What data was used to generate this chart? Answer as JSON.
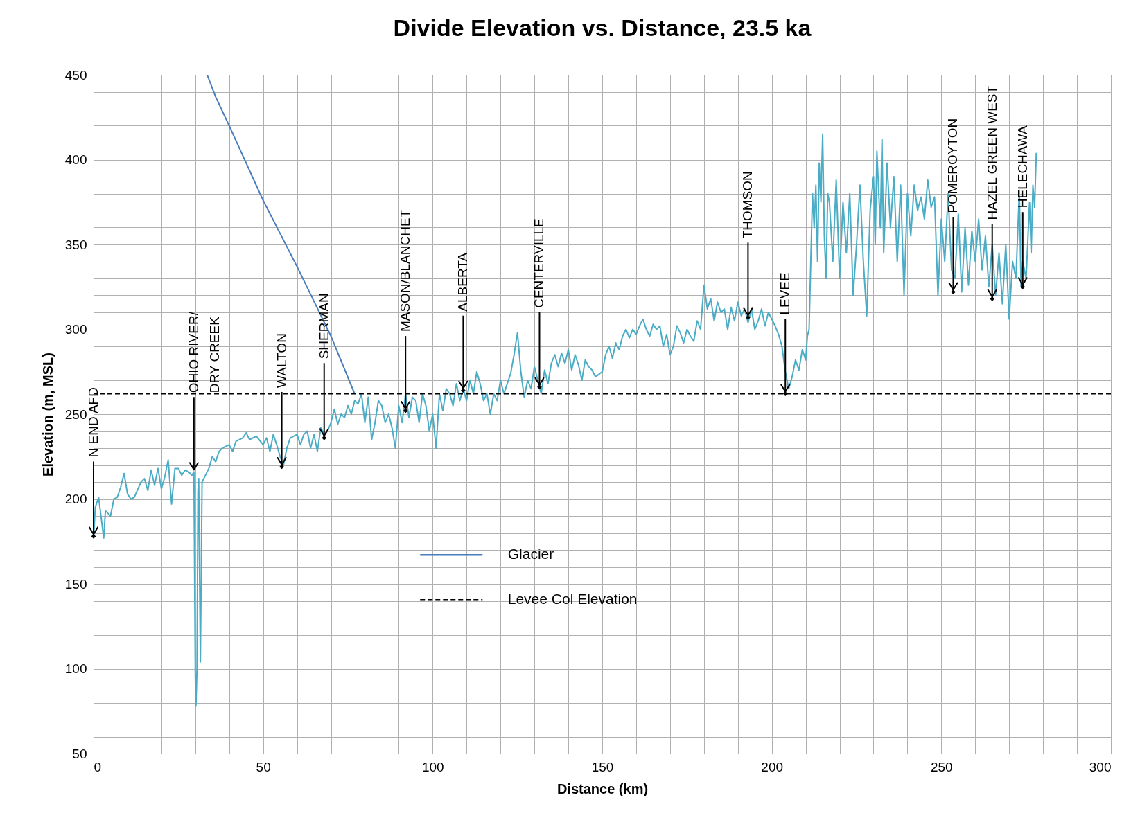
{
  "chart_data": {
    "type": "line",
    "title": "Divide Elevation vs. Distance, 23.5 ka",
    "xlabel": "Distance (km)",
    "ylabel": "Elevation (m, MSL)",
    "xlim": [
      0,
      300
    ],
    "ylim": [
      50,
      450
    ],
    "xticks": [
      0,
      {
        "value": 10,
        "label": null
      },
      {
        "value": 20,
        "label": null
      },
      {
        "value": 30,
        "label": null
      },
      {
        "value": 40,
        "label": null
      },
      50,
      {
        "value": 60,
        "label": null
      },
      {
        "value": 70,
        "label": null
      },
      {
        "value": 80,
        "label": null
      },
      {
        "value": 90,
        "label": null
      },
      100,
      {
        "value": 110,
        "label": null
      },
      {
        "value": 120,
        "label": null
      },
      {
        "value": 130,
        "label": null
      },
      {
        "value": 140,
        "label": null
      },
      150,
      {
        "value": 160,
        "label": null
      },
      {
        "value": 170,
        "label": null
      },
      {
        "value": 180,
        "label": null
      },
      {
        "value": 190,
        "label": null
      },
      200,
      {
        "value": 210,
        "label": null
      },
      {
        "value": 220,
        "label": null
      },
      {
        "value": 230,
        "label": null
      },
      {
        "value": 240,
        "label": null
      },
      250,
      {
        "value": 260,
        "label": null
      },
      {
        "value": 270,
        "label": null
      },
      {
        "value": 280,
        "label": null
      },
      {
        "value": 290,
        "label": null
      },
      300
    ],
    "yticks": [
      50,
      {
        "value": 60,
        "label": null
      },
      {
        "value": 70,
        "label": null
      },
      {
        "value": 80,
        "label": null
      },
      {
        "value": 90,
        "label": null
      },
      100,
      {
        "value": 110,
        "label": null
      },
      {
        "value": 120,
        "label": null
      },
      {
        "value": 130,
        "label": null
      },
      {
        "value": 140,
        "label": null
      },
      150,
      {
        "value": 160,
        "label": null
      },
      {
        "value": 170,
        "label": null
      },
      {
        "value": 180,
        "label": null
      },
      {
        "value": 190,
        "label": null
      },
      200,
      {
        "value": 210,
        "label": null
      },
      {
        "value": 220,
        "label": null
      },
      {
        "value": 230,
        "label": null
      },
      {
        "value": 240,
        "label": null
      },
      250,
      {
        "value": 260,
        "label": null
      },
      {
        "value": 270,
        "label": null
      },
      {
        "value": 280,
        "label": null
      },
      {
        "value": 290,
        "label": null
      },
      300,
      {
        "value": 310,
        "label": null
      },
      {
        "value": 320,
        "label": null
      },
      {
        "value": 330,
        "label": null
      },
      {
        "value": 340,
        "label": null
      },
      350,
      {
        "value": 360,
        "label": null
      },
      {
        "value": 370,
        "label": null
      },
      {
        "value": 380,
        "label": null
      },
      {
        "value": 390,
        "label": null
      },
      400,
      {
        "value": 410,
        "label": null
      },
      {
        "value": 420,
        "label": null
      },
      {
        "value": 430,
        "label": null
      },
      {
        "value": 440,
        "label": null
      },
      450
    ],
    "grid": true,
    "legend": "bottom",
    "series": [
      {
        "color": "#4bacc6",
        "x": [
          0,
          0.5,
          1.5,
          2.5,
          3,
          3.5,
          5,
          6,
          7,
          8,
          9,
          10,
          11,
          12,
          14,
          15,
          16,
          17,
          18,
          19,
          20,
          21,
          22,
          23,
          24,
          25,
          26,
          27,
          28,
          29,
          29.6,
          30,
          30.2,
          30.5,
          30.8,
          31,
          31.5,
          32,
          32.5,
          34,
          35,
          36,
          37,
          38,
          40,
          41,
          42,
          44,
          45,
          46,
          48,
          50,
          51,
          52,
          53,
          54,
          55,
          56,
          57,
          58,
          60,
          61,
          62,
          63,
          64,
          65,
          66,
          67,
          68,
          69,
          70,
          71,
          72,
          73,
          74,
          75,
          76,
          77,
          78,
          79,
          80,
          81,
          82,
          83,
          84,
          85,
          86,
          87,
          88,
          89,
          90,
          91,
          92,
          93,
          94,
          95,
          96,
          97,
          98,
          99,
          100,
          101,
          102,
          103,
          104,
          105,
          106,
          107,
          108,
          109,
          110,
          111,
          112,
          113,
          114,
          115,
          116,
          117,
          118,
          119,
          120,
          121,
          122,
          123,
          124,
          125,
          126,
          127,
          128,
          129,
          130,
          131,
          132,
          133,
          134,
          135,
          136,
          137,
          138,
          139,
          140,
          141,
          142,
          143,
          144,
          145,
          146,
          147,
          148,
          150,
          151,
          152,
          153,
          154,
          155,
          156,
          157,
          158,
          159,
          160,
          161,
          162,
          163,
          164,
          165,
          166,
          167,
          168,
          169,
          170,
          171,
          172,
          173,
          174,
          175,
          176,
          177,
          178,
          179,
          180,
          181,
          182,
          183,
          184,
          185,
          186,
          187,
          188,
          189,
          190,
          191,
          192,
          193,
          194,
          195,
          196,
          197,
          198,
          199,
          200,
          201,
          202,
          203,
          204,
          205,
          206,
          207,
          208,
          209,
          210,
          210.5,
          211,
          212,
          212.5,
          213,
          213.5,
          214,
          214.5,
          215,
          215.5,
          216,
          216.5,
          217,
          218,
          219,
          220,
          221,
          222,
          223,
          224,
          225,
          226,
          227,
          228,
          229,
          230,
          230.5,
          231,
          232,
          232.5,
          233,
          234,
          235,
          236,
          237,
          238,
          239,
          240,
          241,
          242,
          243,
          244,
          245,
          246,
          247,
          248,
          249,
          250,
          251,
          252,
          253,
          254,
          255,
          256,
          257,
          258,
          259,
          260,
          261,
          262,
          263,
          264,
          265,
          266,
          267,
          268,
          269,
          270,
          271,
          272,
          273,
          273.5,
          274,
          275,
          276,
          276.5,
          277,
          277.5,
          278
        ],
        "values": [
          176,
          195,
          201,
          185,
          177,
          193,
          190,
          200,
          201,
          207,
          215,
          203,
          200,
          201,
          210,
          212,
          205,
          217,
          208,
          218,
          206,
          213,
          223,
          197,
          218,
          218,
          214,
          217,
          216,
          214,
          216,
          95,
          78,
          100,
          205,
          212,
          104,
          210,
          212,
          218,
          225,
          222,
          228,
          230,
          232,
          228,
          234,
          236,
          239,
          235,
          237,
          232,
          236,
          228,
          238,
          232,
          225,
          220,
          230,
          236,
          238,
          232,
          238,
          240,
          230,
          238,
          228,
          242,
          238,
          240,
          245,
          253,
          244,
          250,
          248,
          255,
          250,
          258,
          256,
          262,
          245,
          260,
          235,
          245,
          258,
          255,
          245,
          250,
          242,
          230,
          255,
          245,
          262,
          248,
          260,
          258,
          245,
          262,
          255,
          240,
          250,
          230,
          262,
          252,
          265,
          262,
          255,
          268,
          258,
          265,
          258,
          270,
          262,
          275,
          268,
          258,
          262,
          250,
          262,
          258,
          270,
          262,
          268,
          274,
          285,
          298,
          275,
          260,
          270,
          265,
          278,
          270,
          262,
          276,
          268,
          280,
          285,
          278,
          286,
          280,
          288,
          276,
          285,
          279,
          270,
          282,
          278,
          276,
          272,
          275,
          285,
          290,
          283,
          292,
          288,
          296,
          300,
          295,
          300,
          297,
          302,
          306,
          300,
          296,
          303,
          300,
          302,
          290,
          297,
          285,
          290,
          302,
          298,
          292,
          300,
          296,
          293,
          305,
          300,
          326,
          312,
          318,
          305,
          316,
          310,
          312,
          300,
          313,
          305,
          316,
          308,
          312,
          304,
          312,
          300,
          305,
          312,
          302,
          310,
          306,
          302,
          297,
          290,
          275,
          265,
          272,
          282,
          276,
          288,
          282,
          296,
          300,
          380,
          360,
          385,
          340,
          398,
          375,
          415,
          355,
          330,
          380,
          375,
          340,
          388,
          330,
          375,
          345,
          380,
          320,
          350,
          385,
          340,
          308,
          370,
          390,
          350,
          405,
          360,
          412,
          345,
          398,
          360,
          390,
          340,
          385,
          320,
          380,
          355,
          385,
          370,
          378,
          365,
          388,
          372,
          378,
          320,
          365,
          340,
          380,
          335,
          330,
          368,
          322,
          360,
          326,
          358,
          340,
          365,
          335,
          355,
          325,
          350,
          320,
          345,
          315,
          350,
          306,
          340,
          330,
          382,
          325,
          340,
          330,
          375,
          345,
          385,
          372,
          404
        ]
      },
      {
        "name": "Glacier",
        "color": "#4a7ebb",
        "x": [
          33.5,
          36,
          40,
          50,
          60,
          70,
          77
        ],
        "values": [
          450,
          437,
          420,
          376,
          337,
          296,
          262
        ]
      },
      {
        "type": "scatter",
        "marker": "diamond",
        "color": "#000000",
        "x": [
          0,
          55.5,
          68,
          92,
          109,
          131.5,
          193,
          204,
          253.5,
          265,
          274
        ],
        "values": [
          178,
          219,
          236,
          252,
          264,
          266,
          307,
          262,
          322,
          318,
          325
        ]
      }
    ],
    "ref_lines": [
      {
        "axis": "y",
        "value": 262,
        "label": "Levee Col Elevation",
        "color": "#000000",
        "line_style": "dashed"
      }
    ],
    "annotations": [
      {
        "text": "N END AFD",
        "x": 0,
        "y": 178
      },
      {
        "text": "OHIO RIVER/\nDRY CREEK",
        "x": 29.6,
        "y": 216
      },
      {
        "text": "WALTON",
        "x": 55.5,
        "y": 219
      },
      {
        "text": "SHERMAN",
        "x": 68,
        "y": 236
      },
      {
        "text": "MASON/BLANCHET",
        "x": 92,
        "y": 252
      },
      {
        "text": "ALBERTA",
        "x": 109,
        "y": 264
      },
      {
        "text": "CENTERVILLE",
        "x": 131.5,
        "y": 266
      },
      {
        "text": "THOMSON",
        "x": 193,
        "y": 307
      },
      {
        "text": "LEVEE",
        "x": 204,
        "y": 262
      },
      {
        "text": "POMEROYTON",
        "x": 253.5,
        "y": 322
      },
      {
        "text": "HAZEL GREEN WEST",
        "x": 265,
        "y": 318
      },
      {
        "text": "HELECHAWA",
        "x": 274,
        "y": 325
      }
    ]
  }
}
